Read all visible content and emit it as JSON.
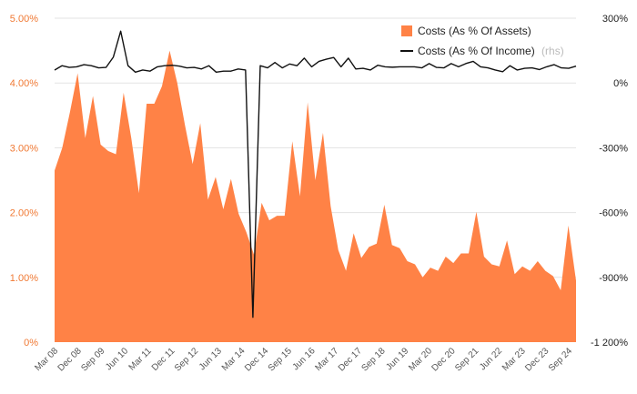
{
  "chart_data": {
    "type": "area",
    "x_labels": [
      "Mar 08",
      "Dec 08",
      "Sep 09",
      "Jun 10",
      "Mar 11",
      "Dec 11",
      "Sep 12",
      "Jun 13",
      "Mar 14",
      "Dec 14",
      "Sep 15",
      "Jun 16",
      "Mar 17",
      "Dec 17",
      "Sep 18",
      "Jun 19",
      "Mar 20",
      "Dec 20",
      "Sep 21",
      "Jun 22",
      "Mar 23",
      "Dec 23",
      "Sep 24"
    ],
    "y_left": {
      "ticks": [
        "0%",
        "1.00%",
        "2.00%",
        "3.00%",
        "4.00%",
        "5.00%"
      ],
      "range": [
        0,
        5
      ],
      "unit": "%"
    },
    "y_right": {
      "ticks": [
        "-1 200%",
        "-900%",
        "-600%",
        "-300%",
        "0%",
        "300%"
      ],
      "range": [
        -1200,
        300
      ],
      "unit": "%"
    },
    "legend": {
      "position": "top-right",
      "items": [
        {
          "name": "Costs (As % Of Assets)",
          "note": "",
          "color": "#ff8246",
          "marker": "square"
        },
        {
          "name": "Costs (As % Of Income)",
          "note": "(rhs)",
          "color": "#111111",
          "marker": "line"
        }
      ]
    },
    "series": [
      {
        "name": "Costs (As % Of Assets)",
        "axis": "left",
        "type": "area",
        "color": "#ff8246",
        "values": [
          2.65,
          3.0,
          3.55,
          4.15,
          3.15,
          3.8,
          3.05,
          2.95,
          2.9,
          3.85,
          3.15,
          2.3,
          3.68,
          3.68,
          3.95,
          4.5,
          4.0,
          3.35,
          2.75,
          3.38,
          2.2,
          2.55,
          2.05,
          2.52,
          1.98,
          1.7,
          1.35,
          2.15,
          1.88,
          1.95,
          1.95,
          3.1,
          2.25,
          3.7,
          2.5,
          3.23,
          2.1,
          1.42,
          1.1,
          1.68,
          1.3,
          1.47,
          1.52,
          2.12,
          1.5,
          1.45,
          1.25,
          1.2,
          1.0,
          1.15,
          1.1,
          1.32,
          1.22,
          1.37,
          1.37,
          2.01,
          1.32,
          1.2,
          1.17,
          1.57,
          1.05,
          1.17,
          1.1,
          1.25,
          1.1,
          1.02,
          0.8,
          1.8,
          0.95
        ]
      },
      {
        "name": "Costs (As % Of Income)",
        "axis": "right",
        "type": "line",
        "color": "#111111",
        "values": [
          60,
          80,
          72,
          75,
          85,
          80,
          70,
          72,
          120,
          240,
          80,
          50,
          60,
          55,
          75,
          80,
          82,
          78,
          70,
          72,
          65,
          80,
          50,
          55,
          55,
          65,
          60,
          -1085,
          80,
          70,
          95,
          70,
          88,
          80,
          115,
          75,
          100,
          110,
          118,
          75,
          115,
          65,
          68,
          60,
          82,
          75,
          73,
          75,
          75,
          75,
          70,
          90,
          72,
          70,
          90,
          75,
          90,
          100,
          75,
          70,
          60,
          52,
          80,
          60,
          68,
          70,
          62,
          75,
          85,
          70,
          68,
          78
        ]
      }
    ]
  }
}
